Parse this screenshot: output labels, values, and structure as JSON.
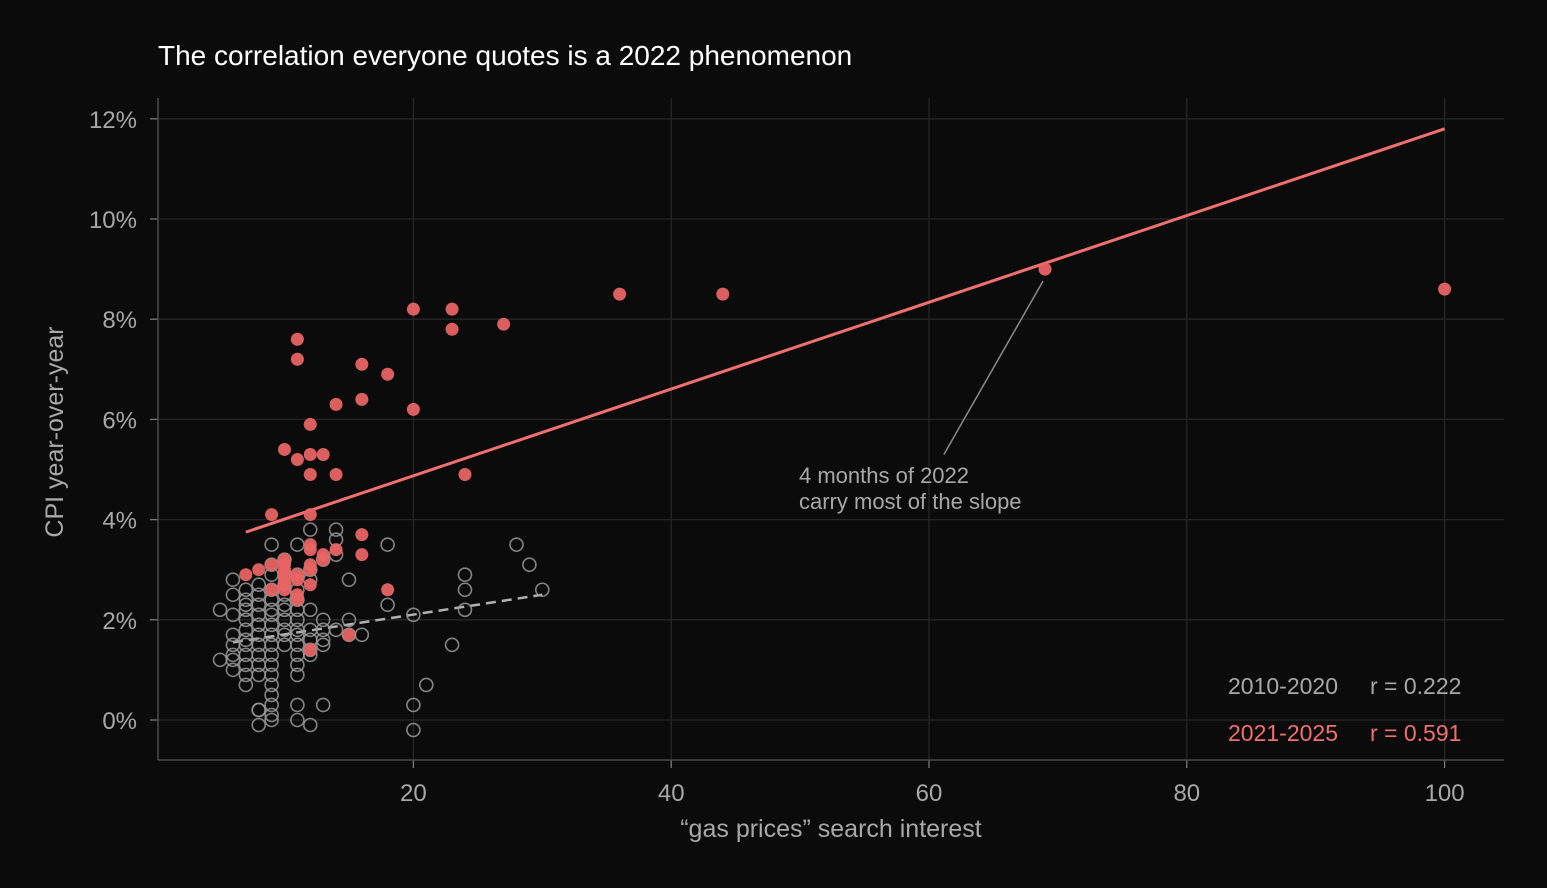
{
  "chart_data": {
    "type": "scatter",
    "title": "The correlation everyone quotes is a 2022 phenomenon",
    "xlabel": "“gas prices” search interest",
    "ylabel": "CPI year-over-year",
    "xlim": [
      1,
      105
    ],
    "ylim": [
      -0.8,
      12.4
    ],
    "x_ticks": [
      20,
      40,
      60,
      80,
      100
    ],
    "x_tick_labels": [
      "20",
      "40",
      "60",
      "80",
      "100"
    ],
    "y_ticks": [
      0,
      2,
      4,
      6,
      8,
      10,
      12
    ],
    "y_tick_labels": [
      "0%",
      "2%",
      "4%",
      "6%",
      "8%",
      "10%",
      "12%"
    ],
    "grid": true,
    "colors": {
      "background": "#0b0b0b",
      "grid": "#262626",
      "early": "#9a9a9a",
      "recent": "#e86464",
      "recent_line": "#f07070",
      "early_line": "#b0b0b0"
    },
    "series": [
      {
        "name": "2010-2020",
        "marker": "hollow-circle",
        "points": [
          [
            5,
            2.2
          ],
          [
            5,
            1.2
          ],
          [
            6,
            2.8
          ],
          [
            6,
            2.5
          ],
          [
            6,
            2.1
          ],
          [
            6,
            1.7
          ],
          [
            6,
            1.5
          ],
          [
            6,
            1.3
          ],
          [
            6,
            1.2
          ],
          [
            6,
            1.0
          ],
          [
            7,
            2.6
          ],
          [
            7,
            2.4
          ],
          [
            7,
            2.3
          ],
          [
            7,
            2.2
          ],
          [
            7,
            2.0
          ],
          [
            7,
            1.8
          ],
          [
            7,
            1.6
          ],
          [
            7,
            1.5
          ],
          [
            7,
            1.3
          ],
          [
            7,
            1.1
          ],
          [
            7,
            0.9
          ],
          [
            7,
            0.7
          ],
          [
            8,
            2.7
          ],
          [
            8,
            2.5
          ],
          [
            8,
            2.3
          ],
          [
            8,
            2.1
          ],
          [
            8,
            1.9
          ],
          [
            8,
            1.7
          ],
          [
            8,
            1.5
          ],
          [
            8,
            1.3
          ],
          [
            8,
            1.1
          ],
          [
            8,
            0.9
          ],
          [
            8,
            0.2
          ],
          [
            8,
            0.2
          ],
          [
            8,
            -0.1
          ],
          [
            9,
            3.5
          ],
          [
            9,
            3.1
          ],
          [
            9,
            2.9
          ],
          [
            9,
            2.6
          ],
          [
            9,
            2.4
          ],
          [
            9,
            2.2
          ],
          [
            9,
            2.1
          ],
          [
            9,
            1.9
          ],
          [
            9,
            1.7
          ],
          [
            9,
            1.5
          ],
          [
            9,
            1.3
          ],
          [
            9,
            1.1
          ],
          [
            9,
            0.9
          ],
          [
            9,
            0.7
          ],
          [
            9,
            0.5
          ],
          [
            9,
            0.3
          ],
          [
            9,
            0.1
          ],
          [
            9,
            0.0
          ],
          [
            10,
            3.2
          ],
          [
            10,
            2.9
          ],
          [
            10,
            2.7
          ],
          [
            10,
            2.5
          ],
          [
            10,
            2.3
          ],
          [
            10,
            2.2
          ],
          [
            10,
            2.0
          ],
          [
            10,
            1.8
          ],
          [
            10,
            1.7
          ],
          [
            10,
            1.5
          ],
          [
            11,
            3.5
          ],
          [
            11,
            2.9
          ],
          [
            11,
            2.6
          ],
          [
            11,
            2.4
          ],
          [
            11,
            2.2
          ],
          [
            11,
            2.0
          ],
          [
            11,
            1.8
          ],
          [
            11,
            1.7
          ],
          [
            11,
            1.5
          ],
          [
            11,
            1.3
          ],
          [
            11,
            1.1
          ],
          [
            11,
            0.9
          ],
          [
            11,
            0.3
          ],
          [
            11,
            0.0
          ],
          [
            12,
            3.8
          ],
          [
            12,
            3.0
          ],
          [
            12,
            2.8
          ],
          [
            12,
            2.2
          ],
          [
            12,
            1.8
          ],
          [
            12,
            1.6
          ],
          [
            12,
            1.4
          ],
          [
            12,
            1.3
          ],
          [
            12,
            -0.1
          ],
          [
            13,
            3.2
          ],
          [
            13,
            2.0
          ],
          [
            13,
            1.8
          ],
          [
            13,
            1.6
          ],
          [
            13,
            1.5
          ],
          [
            13,
            0.3
          ],
          [
            14,
            3.8
          ],
          [
            14,
            3.6
          ],
          [
            14,
            3.3
          ],
          [
            14,
            1.8
          ],
          [
            15,
            2.8
          ],
          [
            15,
            2.0
          ],
          [
            15,
            1.7
          ],
          [
            16,
            1.7
          ],
          [
            18,
            3.5
          ],
          [
            18,
            2.3
          ],
          [
            20,
            2.1
          ],
          [
            20,
            0.3
          ],
          [
            20,
            -0.2
          ],
          [
            21,
            0.7
          ],
          [
            23,
            1.5
          ],
          [
            24,
            2.9
          ],
          [
            24,
            2.6
          ],
          [
            24,
            2.2
          ],
          [
            28,
            3.5
          ],
          [
            29,
            3.1
          ],
          [
            30,
            2.6
          ]
        ],
        "fit": {
          "x": [
            6,
            30
          ],
          "y": [
            1.55,
            2.5
          ]
        },
        "r_label": "2010-2020",
        "r_value": "r = 0.222"
      },
      {
        "name": "2021-2025",
        "marker": "filled-circle",
        "points": [
          [
            7,
            2.9
          ],
          [
            8,
            3.0
          ],
          [
            9,
            4.1
          ],
          [
            9,
            3.1
          ],
          [
            9,
            2.6
          ],
          [
            10,
            5.4
          ],
          [
            10,
            3.2
          ],
          [
            10,
            3.1
          ],
          [
            10,
            3.0
          ],
          [
            10,
            2.9
          ],
          [
            10,
            2.8
          ],
          [
            10,
            2.7
          ],
          [
            10,
            2.6
          ],
          [
            11,
            7.6
          ],
          [
            11,
            7.2
          ],
          [
            11,
            5.2
          ],
          [
            11,
            2.9
          ],
          [
            11,
            2.8
          ],
          [
            11,
            2.5
          ],
          [
            11,
            2.4
          ],
          [
            12,
            5.9
          ],
          [
            12,
            5.3
          ],
          [
            12,
            4.9
          ],
          [
            12,
            4.1
          ],
          [
            12,
            3.5
          ],
          [
            12,
            3.4
          ],
          [
            12,
            3.1
          ],
          [
            12,
            3.0
          ],
          [
            12,
            2.7
          ],
          [
            12,
            1.4
          ],
          [
            13,
            5.3
          ],
          [
            13,
            3.3
          ],
          [
            13,
            3.2
          ],
          [
            14,
            6.3
          ],
          [
            14,
            4.9
          ],
          [
            14,
            3.4
          ],
          [
            15,
            1.7
          ],
          [
            16,
            7.1
          ],
          [
            16,
            6.4
          ],
          [
            16,
            3.7
          ],
          [
            16,
            3.3
          ],
          [
            18,
            6.9
          ],
          [
            18,
            2.6
          ],
          [
            20,
            8.2
          ],
          [
            20,
            6.2
          ],
          [
            23,
            8.2
          ],
          [
            23,
            7.8
          ],
          [
            24,
            4.9
          ],
          [
            27,
            7.9
          ],
          [
            36,
            8.5
          ],
          [
            44,
            8.5
          ],
          [
            69,
            9.0
          ],
          [
            100,
            8.6
          ]
        ],
        "fit": {
          "x": [
            7,
            100
          ],
          "y": [
            3.75,
            11.8
          ]
        },
        "r_label": "2021-2025",
        "r_value": "r = 0.591"
      }
    ],
    "annotation": {
      "lines": [
        "4 months of 2022",
        "carry most of the slope"
      ],
      "target": [
        69,
        9.0
      ],
      "from": [
        61,
        5.3
      ]
    }
  }
}
